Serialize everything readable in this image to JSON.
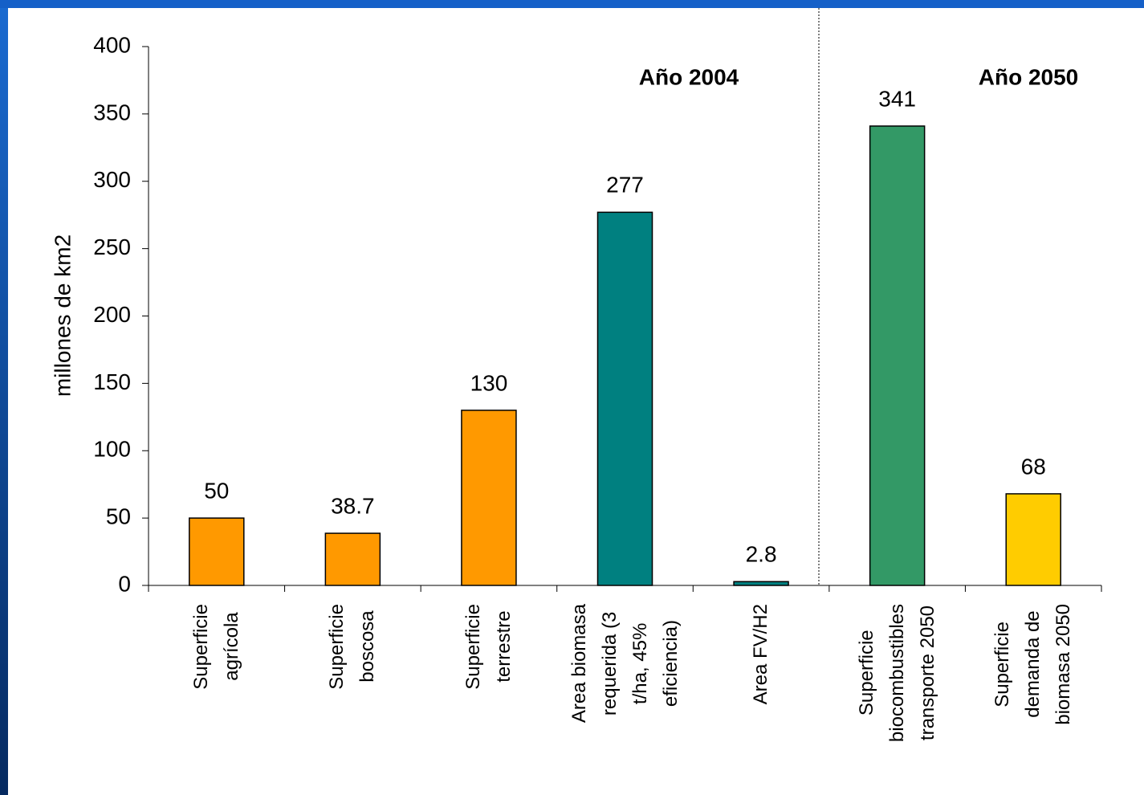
{
  "chart_data": {
    "type": "bar",
    "y_label": "millones de km2",
    "categories": [
      "Superficie\nagrícola",
      "Superficie\nboscosa",
      "Superficie\nterrestre",
      "Area biomasa\nrequerida (3\nt/ha, 45%\neficiencia)",
      "Area FV/H2",
      "Superficie\nbiocombustibles\ntransporte 2050",
      "Superficie\ndemanda de\nbiomasa 2050"
    ],
    "values": [
      50,
      38.7,
      130,
      277,
      2.8,
      341,
      68
    ],
    "colors": [
      "#ff9900",
      "#ff9900",
      "#ff9900",
      "#008080",
      "#008080",
      "#339966",
      "#ffcc00"
    ],
    "annotations": [
      "Año 2004",
      "Año 2050"
    ],
    "ylim": [
      0,
      400
    ],
    "yticks": [
      0,
      50,
      100,
      150,
      200,
      250,
      300,
      350,
      400
    ],
    "grid": false
  }
}
